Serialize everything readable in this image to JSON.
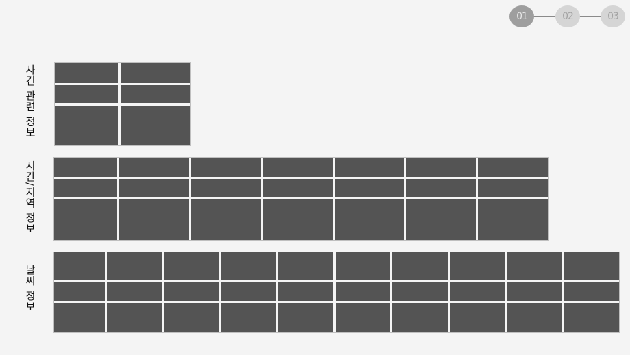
{
  "stepper": {
    "steps": [
      "01",
      "02",
      "03"
    ],
    "active_index": 0
  },
  "sections": [
    {
      "id": "incident",
      "label": "사건 관련 정보",
      "columns": 2,
      "rows": 3
    },
    {
      "id": "time_region",
      "label": "시간/지역 정보",
      "columns": 7,
      "rows": 3
    },
    {
      "id": "weather",
      "label": "날씨 정보",
      "columns": 10,
      "rows": 3
    }
  ],
  "colors": {
    "cell": "#545454",
    "background": "#f4f4f4",
    "step_active": "#9e9e9e",
    "step_inactive": "#d5d5d5"
  }
}
